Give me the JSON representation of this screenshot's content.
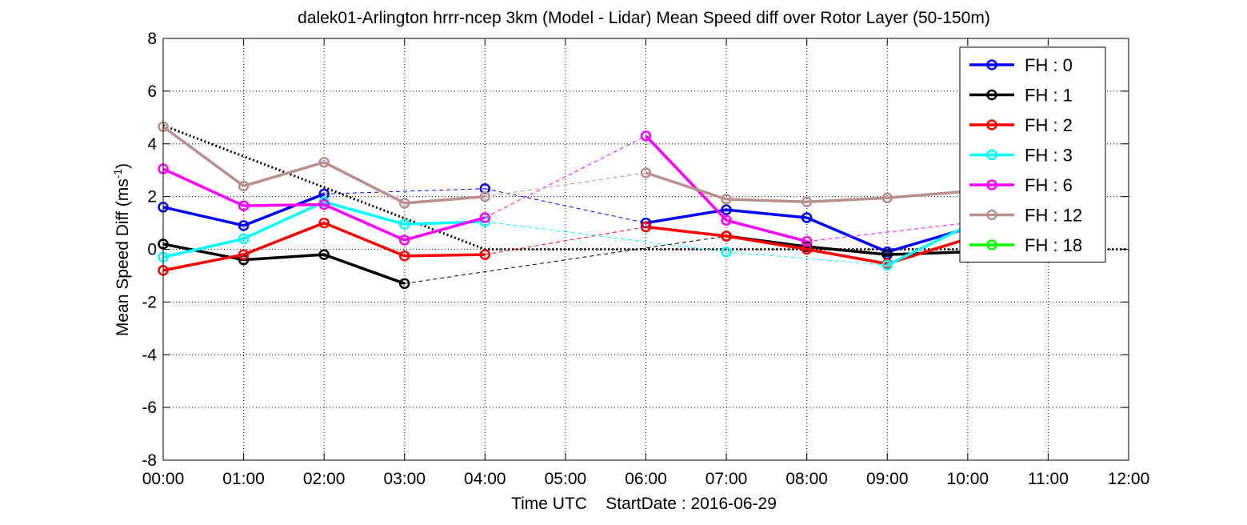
{
  "chart_data": {
    "type": "line",
    "title": "dalek01-Arlington hrrr-ncep 3km (Model - Lidar) Mean Speed diff over Rotor Layer (50-150m)",
    "xlabel": "Time UTC    StartDate : 2016-06-29",
    "ylabel": {
      "main": "Mean Speed Diff (ms",
      "sup": "-1",
      "close": ")"
    },
    "x_ticks": [
      "00:00",
      "01:00",
      "02:00",
      "03:00",
      "04:00",
      "05:00",
      "06:00",
      "07:00",
      "08:00",
      "09:00",
      "10:00",
      "11:00",
      "12:00"
    ],
    "xlim": [
      0,
      12
    ],
    "ylim": [
      -8,
      8
    ],
    "y_ticks": [
      "8",
      "6",
      "4",
      "2",
      "0",
      "-2",
      "-4",
      "-6",
      "-8"
    ],
    "grid": true,
    "legend_position": "top-right",
    "series": [
      {
        "name": "FH : 0",
        "color": "#0000ff",
        "x": [
          0,
          1,
          2,
          4,
          6,
          7,
          8,
          9,
          10
        ],
        "y": [
          1.6,
          0.9,
          2.1,
          2.3,
          1.0,
          1.5,
          1.2,
          -0.1,
          0.8
        ]
      },
      {
        "name": "FH : 1",
        "color": "#000000",
        "x": [
          0,
          1,
          2,
          3,
          7,
          8,
          9,
          10
        ],
        "y": [
          0.2,
          -0.4,
          -0.2,
          -1.3,
          0.5,
          0.1,
          -0.2,
          -0.1
        ]
      },
      {
        "name": "FH : 2",
        "color": "#ff0000",
        "x": [
          0,
          1,
          2,
          3,
          4,
          6,
          7,
          8,
          9,
          10
        ],
        "y": [
          -0.8,
          -0.2,
          1.0,
          -0.25,
          -0.2,
          0.85,
          0.5,
          0.0,
          -0.55,
          0.4
        ]
      },
      {
        "name": "FH : 3",
        "color": "#00ffff",
        "x": [
          0,
          1,
          2,
          3,
          4,
          7,
          9,
          10
        ],
        "y": [
          -0.3,
          0.4,
          1.8,
          0.95,
          1.05,
          -0.1,
          -0.6,
          0.9
        ]
      },
      {
        "name": "FH : 6",
        "color": "#ff00ff",
        "x": [
          0,
          1,
          2,
          3,
          4,
          6,
          7,
          8,
          10
        ],
        "y": [
          3.05,
          1.65,
          1.7,
          0.35,
          1.2,
          4.3,
          1.1,
          0.3,
          1.0
        ]
      },
      {
        "name": "FH : 12",
        "color": "#bc8f8f",
        "x": [
          0,
          1,
          2,
          3,
          4,
          6,
          7,
          8,
          9,
          10
        ],
        "y": [
          4.65,
          2.4,
          3.3,
          1.75,
          2.0,
          2.9,
          1.9,
          1.8,
          1.95,
          2.2
        ]
      },
      {
        "name": "FH : 18",
        "color": "#00ff00",
        "x": [],
        "y": []
      }
    ],
    "reference_line": {
      "color": "#000000",
      "x": [
        0,
        4,
        12
      ],
      "y": [
        4.7,
        0,
        0
      ]
    }
  }
}
